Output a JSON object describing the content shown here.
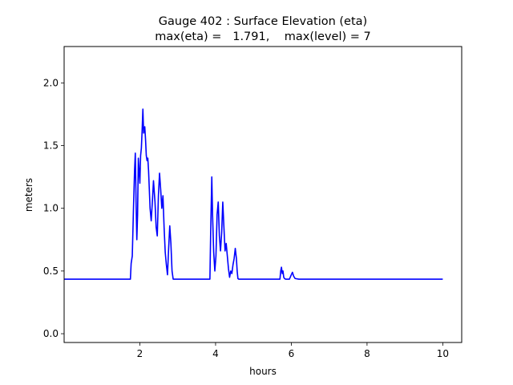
{
  "chart_data": {
    "type": "line",
    "title": "Gauge 402 : Surface Elevation (eta)",
    "subtitle": "max(eta) =   1.791,    max(level) = 7",
    "xlabel": "hours",
    "ylabel": "meters",
    "xlim": [
      0.0,
      10.5
    ],
    "ylim": [
      -0.07,
      2.29
    ],
    "xticks": [
      2,
      4,
      6,
      8,
      10
    ],
    "yticks": [
      0.0,
      0.5,
      1.0,
      1.5,
      2.0
    ],
    "xtick_labels": [
      "2",
      "4",
      "6",
      "8",
      "10"
    ],
    "ytick_labels": [
      "0.0",
      "0.5",
      "1.0",
      "1.5",
      "2.0"
    ],
    "grid": false,
    "series": [
      {
        "color": "#0000ff",
        "x": [
          0.0,
          1.75,
          1.77,
          1.8,
          1.83,
          1.86,
          1.88,
          1.9,
          1.92,
          1.94,
          1.96,
          1.98,
          2.0,
          2.02,
          2.04,
          2.06,
          2.08,
          2.1,
          2.13,
          2.15,
          2.17,
          2.19,
          2.21,
          2.23,
          2.25,
          2.27,
          2.3,
          2.33,
          2.36,
          2.4,
          2.43,
          2.46,
          2.49,
          2.52,
          2.55,
          2.58,
          2.61,
          2.64,
          2.67,
          2.7,
          2.73,
          2.76,
          2.79,
          2.82,
          2.85,
          2.88,
          2.91,
          2.94,
          2.97,
          3.0,
          3.03,
          3.06,
          3.09,
          3.12,
          3.15,
          3.2,
          3.85,
          3.87,
          3.9,
          3.92,
          3.95,
          3.98,
          4.01,
          4.04,
          4.07,
          4.1,
          4.13,
          4.16,
          4.19,
          4.22,
          4.25,
          4.28,
          4.31,
          4.34,
          4.37,
          4.4,
          4.43,
          4.46,
          4.49,
          4.52,
          4.55,
          4.57,
          4.59,
          4.61,
          4.63,
          4.65,
          4.67,
          4.7,
          4.73,
          4.76,
          4.8,
          5.7,
          5.72,
          5.74,
          5.76,
          5.78,
          5.8,
          5.82,
          5.85,
          5.9,
          5.95,
          6.0,
          6.03,
          6.06,
          6.1,
          6.2,
          10.0
        ],
        "y": [
          0.435,
          0.435,
          0.56,
          0.62,
          0.98,
          1.3,
          1.44,
          1.05,
          0.75,
          0.95,
          1.4,
          1.3,
          1.2,
          1.42,
          1.48,
          1.62,
          1.791,
          1.6,
          1.65,
          1.55,
          1.42,
          1.38,
          1.4,
          1.3,
          1.15,
          1.0,
          0.9,
          1.05,
          1.22,
          1.05,
          0.85,
          0.78,
          1.1,
          1.28,
          1.15,
          1.0,
          1.1,
          0.85,
          0.65,
          0.55,
          0.47,
          0.68,
          0.86,
          0.72,
          0.5,
          0.435,
          0.435,
          0.435,
          0.435,
          0.435,
          0.435,
          0.435,
          0.435,
          0.435,
          0.435,
          0.435,
          0.435,
          0.8,
          1.25,
          0.95,
          0.65,
          0.5,
          0.62,
          0.95,
          1.05,
          0.78,
          0.66,
          0.8,
          1.05,
          0.85,
          0.66,
          0.72,
          0.62,
          0.52,
          0.45,
          0.5,
          0.48,
          0.55,
          0.6,
          0.68,
          0.6,
          0.5,
          0.44,
          0.435,
          0.435,
          0.435,
          0.435,
          0.435,
          0.435,
          0.435,
          0.435,
          0.435,
          0.5,
          0.53,
          0.48,
          0.5,
          0.45,
          0.44,
          0.435,
          0.435,
          0.435,
          0.47,
          0.49,
          0.46,
          0.44,
          0.435,
          0.435
        ]
      }
    ]
  }
}
